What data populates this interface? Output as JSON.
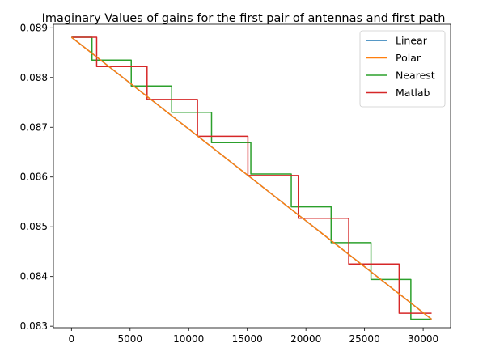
{
  "chart_data": {
    "type": "line",
    "title": "Imaginary Values of gains for the first pair of antennas and first path",
    "xlabel": "",
    "ylabel": "",
    "xlim": [
      -1540,
      32340
    ],
    "ylim": [
      0.08297,
      0.08907
    ],
    "xticks": [
      0,
      5000,
      10000,
      15000,
      20000,
      25000,
      30000
    ],
    "yticks": [
      0.083,
      0.084,
      0.085,
      0.086,
      0.087,
      0.088,
      0.089
    ],
    "ytick_labels": [
      "0.083",
      "0.084",
      "0.085",
      "0.086",
      "0.087",
      "0.088",
      "0.089"
    ],
    "grid": false,
    "legend_position": "top-right",
    "series": [
      {
        "name": "Linear",
        "color": "#1f77b4",
        "step": false,
        "x": [
          0,
          30720
        ],
        "y": [
          0.08881,
          0.08314
        ]
      },
      {
        "name": "Polar",
        "color": "#ff7f0e",
        "step": false,
        "x": [
          0,
          30720
        ],
        "y": [
          0.08881,
          0.08314
        ]
      },
      {
        "name": "Nearest",
        "color": "#2ca02c",
        "step": true,
        "x": [
          0,
          1750,
          5100,
          8550,
          11950,
          15300,
          18750,
          22150,
          25550,
          28950,
          30720
        ],
        "y": [
          0.08881,
          0.08835,
          0.08783,
          0.0873,
          0.08669,
          0.08606,
          0.0854,
          0.08468,
          0.08394,
          0.08314,
          0.08314
        ]
      },
      {
        "name": "Matlab",
        "color": "#d62728",
        "step": true,
        "x": [
          0,
          2150,
          6450,
          10750,
          15050,
          19350,
          23650,
          27950,
          30720
        ],
        "y": [
          0.08881,
          0.08822,
          0.08756,
          0.08682,
          0.08603,
          0.08517,
          0.08425,
          0.08326,
          0.08326
        ]
      }
    ]
  }
}
